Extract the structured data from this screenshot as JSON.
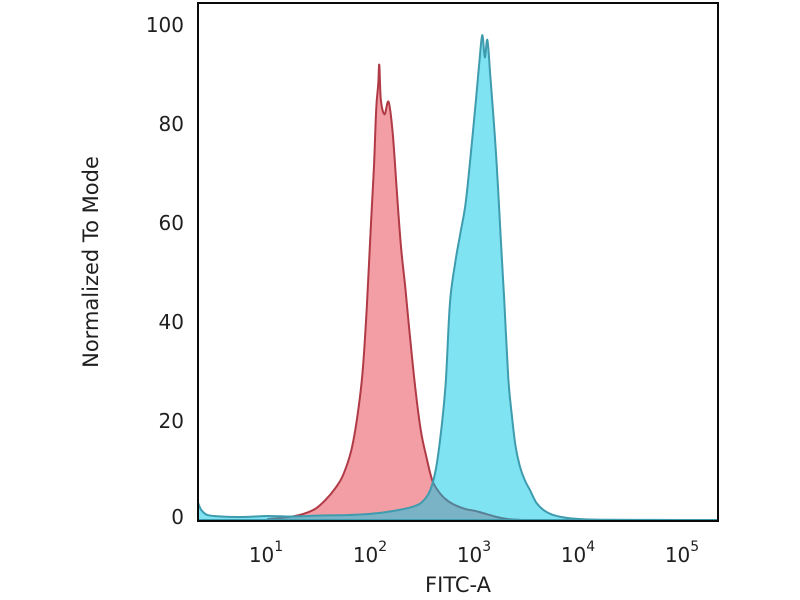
{
  "chart_data": {
    "type": "area",
    "subtype": "flow-cytometry-histogram",
    "title": "",
    "xlabel": "FITC-A",
    "ylabel": "Normalized To Mode",
    "x_scale": "log10",
    "xlim_log10": [
      0.327,
      5.327
    ],
    "ylim": [
      0,
      104.5
    ],
    "grid": false,
    "legend": "none",
    "yticks": [
      100,
      80,
      60,
      40,
      20,
      0
    ],
    "ytick_labels": [
      "100",
      "80",
      "60",
      "40",
      "20",
      "0"
    ],
    "xticks": [
      {
        "base": "10",
        "exp": "1",
        "value": 10
      },
      {
        "base": "10",
        "exp": "2",
        "value": 100
      },
      {
        "base": "10",
        "exp": "3",
        "value": 1000
      },
      {
        "base": "10",
        "exp": "4",
        "value": 10000
      },
      {
        "base": "10",
        "exp": "5",
        "value": 100000
      }
    ],
    "colors": {
      "red_fill": "rgba(233,78,90,0.55)",
      "red_stroke": "#b03a46",
      "cyan_fill": "rgba(0,200,230,0.5)",
      "cyan_stroke": "#3e9cae",
      "spine": "#0a0a0a",
      "text": "#1f1f1f"
    },
    "series": [
      {
        "name": "red-population",
        "peak_mode_log10x": 2.07,
        "peak_value": 92,
        "points_log10x_value": [
          [
            1.0,
            0.2
          ],
          [
            1.15,
            0.5
          ],
          [
            1.3,
            1.0
          ],
          [
            1.45,
            2.2
          ],
          [
            1.55,
            4
          ],
          [
            1.65,
            6.5
          ],
          [
            1.72,
            9
          ],
          [
            1.8,
            14
          ],
          [
            1.86,
            21
          ],
          [
            1.91,
            30
          ],
          [
            1.95,
            43
          ],
          [
            1.99,
            60
          ],
          [
            2.02,
            72
          ],
          [
            2.04,
            83
          ],
          [
            2.06,
            88
          ],
          [
            2.07,
            92
          ],
          [
            2.085,
            85
          ],
          [
            2.12,
            82
          ],
          [
            2.16,
            84.5
          ],
          [
            2.2,
            78
          ],
          [
            2.24,
            66
          ],
          [
            2.28,
            55
          ],
          [
            2.32,
            47
          ],
          [
            2.37,
            36
          ],
          [
            2.42,
            26
          ],
          [
            2.47,
            18
          ],
          [
            2.52,
            13
          ],
          [
            2.58,
            8
          ],
          [
            2.65,
            5.5
          ],
          [
            2.72,
            4
          ],
          [
            2.8,
            3
          ],
          [
            2.9,
            2.2
          ],
          [
            3.0,
            1.8
          ],
          [
            3.1,
            1.2
          ],
          [
            3.2,
            0.6
          ],
          [
            3.3,
            0.2
          ],
          [
            3.45,
            0
          ]
        ]
      },
      {
        "name": "cyan-population",
        "peak_mode_log10x": 3.06,
        "peak_value": 98,
        "points_log10x_value": [
          [
            0.327,
            3.5
          ],
          [
            0.36,
            2.0
          ],
          [
            0.42,
            1.0
          ],
          [
            0.55,
            0.7
          ],
          [
            0.75,
            0.6
          ],
          [
            1.0,
            0.8
          ],
          [
            1.25,
            0.7
          ],
          [
            1.5,
            0.9
          ],
          [
            1.75,
            1.0
          ],
          [
            1.95,
            1.2
          ],
          [
            2.1,
            1.5
          ],
          [
            2.25,
            2.0
          ],
          [
            2.38,
            2.6
          ],
          [
            2.48,
            3.6
          ],
          [
            2.56,
            6
          ],
          [
            2.62,
            11
          ],
          [
            2.67,
            19
          ],
          [
            2.71,
            28
          ],
          [
            2.75,
            44
          ],
          [
            2.8,
            52
          ],
          [
            2.85,
            58
          ],
          [
            2.9,
            64
          ],
          [
            2.95,
            74
          ],
          [
            3.0,
            85
          ],
          [
            3.03,
            92
          ],
          [
            3.06,
            98
          ],
          [
            3.085,
            93.5
          ],
          [
            3.11,
            97
          ],
          [
            3.14,
            89
          ],
          [
            3.18,
            78
          ],
          [
            3.21,
            68
          ],
          [
            3.24,
            56
          ],
          [
            3.27,
            45
          ],
          [
            3.31,
            29
          ],
          [
            3.34,
            22
          ],
          [
            3.38,
            15
          ],
          [
            3.42,
            11
          ],
          [
            3.47,
            8
          ],
          [
            3.52,
            6
          ],
          [
            3.58,
            3.5
          ],
          [
            3.65,
            2
          ],
          [
            3.73,
            1.1
          ],
          [
            3.82,
            0.6
          ],
          [
            3.92,
            0.3
          ],
          [
            4.05,
            0.12
          ],
          [
            4.3,
            0.05
          ],
          [
            4.7,
            0.02
          ],
          [
            5.327,
            0
          ]
        ]
      }
    ]
  }
}
